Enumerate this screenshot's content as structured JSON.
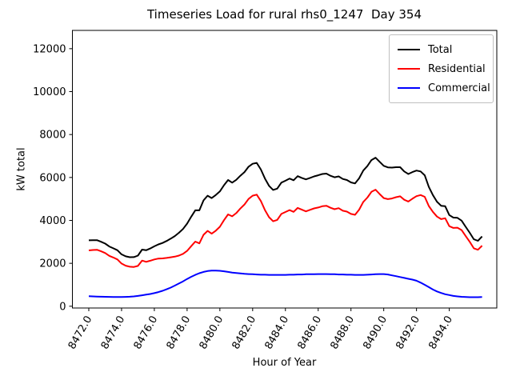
{
  "window": {
    "title": "Timeseries Load for rural rhs0_1247  Day 354"
  },
  "chart_data": {
    "type": "line",
    "title": "Timeseries Load for rural rhs0_1247  Day 354",
    "xlabel": "Hour of Year",
    "ylabel": "kW total",
    "legend_position": "upper right",
    "grid": false,
    "xlim": [
      8471.0,
      8496.9
    ],
    "ylim": [
      -82,
      12852
    ],
    "xticks": {
      "values": [
        8472,
        8474,
        8476,
        8478,
        8480,
        8482,
        8484,
        8486,
        8488,
        8490,
        8492,
        8494
      ],
      "labels": [
        "8472.0",
        "8474.0",
        "8476.0",
        "8478.0",
        "8480.0",
        "8482.0",
        "8484.0",
        "8486.0",
        "8488.0",
        "8490.0",
        "8492.0",
        "8494.0"
      ],
      "rotation_deg": -60
    },
    "yticks": {
      "values": [
        0,
        2000,
        4000,
        6000,
        8000,
        10000,
        12000
      ],
      "labels": [
        "0",
        "2000",
        "4000",
        "6000",
        "8000",
        "10000",
        "12000"
      ]
    },
    "x": [
      8472.0,
      8472.25,
      8472.5,
      8472.75,
      8473.0,
      8473.25,
      8473.5,
      8473.75,
      8474.0,
      8474.25,
      8474.5,
      8474.75,
      8475.0,
      8475.25,
      8475.5,
      8475.75,
      8476.0,
      8476.25,
      8476.5,
      8476.75,
      8477.0,
      8477.25,
      8477.5,
      8477.75,
      8478.0,
      8478.25,
      8478.5,
      8478.75,
      8479.0,
      8479.25,
      8479.5,
      8479.75,
      8480.0,
      8480.25,
      8480.5,
      8480.75,
      8481.0,
      8481.25,
      8481.5,
      8481.75,
      8482.0,
      8482.25,
      8482.5,
      8482.75,
      8483.0,
      8483.25,
      8483.5,
      8483.75,
      8484.0,
      8484.25,
      8484.5,
      8484.75,
      8485.0,
      8485.25,
      8485.5,
      8485.75,
      8486.0,
      8486.25,
      8486.5,
      8486.75,
      8487.0,
      8487.25,
      8487.5,
      8487.75,
      8488.0,
      8488.25,
      8488.5,
      8488.75,
      8489.0,
      8489.25,
      8489.5,
      8489.75,
      8490.0,
      8490.25,
      8490.5,
      8490.75,
      8491.0,
      8491.25,
      8491.5,
      8491.75,
      8492.0,
      8492.25,
      8492.5,
      8492.75,
      8493.0,
      8493.25,
      8493.5,
      8493.75,
      8494.0,
      8494.25,
      8494.5,
      8494.75,
      8495.0,
      8495.25,
      8495.5,
      8495.75,
      8496.0
    ],
    "series": [
      {
        "name": "Total",
        "color": "#000000",
        "values": [
          3070,
          3080,
          3080,
          3005,
          2920,
          2785,
          2700,
          2610,
          2420,
          2325,
          2285,
          2290,
          2360,
          2640,
          2610,
          2690,
          2790,
          2880,
          2950,
          3040,
          3150,
          3270,
          3420,
          3600,
          3850,
          4170,
          4470,
          4470,
          4930,
          5150,
          5040,
          5180,
          5350,
          5640,
          5880,
          5760,
          5890,
          6080,
          6250,
          6500,
          6640,
          6680,
          6370,
          5950,
          5610,
          5420,
          5480,
          5760,
          5850,
          5950,
          5870,
          6060,
          5980,
          5910,
          5980,
          6050,
          6100,
          6160,
          6180,
          6080,
          6010,
          6050,
          5930,
          5880,
          5770,
          5720,
          5960,
          6320,
          6530,
          6810,
          6920,
          6730,
          6540,
          6470,
          6460,
          6480,
          6480,
          6280,
          6160,
          6250,
          6320,
          6280,
          6100,
          5560,
          5180,
          4870,
          4680,
          4660,
          4250,
          4130,
          4120,
          3990,
          3700,
          3420,
          3120,
          3050,
          3250
        ]
      },
      {
        "name": "Residential",
        "color": "#ff0000",
        "values": [
          2600,
          2620,
          2630,
          2560,
          2480,
          2350,
          2270,
          2180,
          1990,
          1890,
          1840,
          1830,
          1880,
          2130,
          2070,
          2120,
          2180,
          2220,
          2230,
          2250,
          2280,
          2310,
          2360,
          2440,
          2580,
          2800,
          3010,
          2930,
          3330,
          3510,
          3380,
          3520,
          3700,
          4010,
          4280,
          4190,
          4340,
          4550,
          4740,
          5000,
          5150,
          5200,
          4900,
          4480,
          4150,
          3960,
          4020,
          4300,
          4390,
          4480,
          4400,
          4580,
          4500,
          4420,
          4490,
          4560,
          4600,
          4660,
          4680,
          4590,
          4520,
          4570,
          4450,
          4410,
          4300,
          4260,
          4500,
          4860,
          5060,
          5330,
          5430,
          5230,
          5040,
          4990,
          5020,
          5080,
          5120,
          4960,
          4880,
          5010,
          5130,
          5180,
          5100,
          4670,
          4400,
          4180,
          4060,
          4100,
          3730,
          3650,
          3660,
          3550,
          3270,
          3000,
          2700,
          2630,
          2820
        ]
      },
      {
        "name": "Commercial",
        "color": "#0000ff",
        "values": [
          470,
          460,
          450,
          445,
          440,
          435,
          430,
          430,
          430,
          435,
          445,
          460,
          480,
          510,
          540,
          570,
          610,
          660,
          720,
          790,
          870,
          960,
          1060,
          1160,
          1270,
          1370,
          1460,
          1540,
          1600,
          1640,
          1660,
          1660,
          1650,
          1630,
          1600,
          1570,
          1550,
          1530,
          1510,
          1500,
          1490,
          1480,
          1470,
          1470,
          1460,
          1460,
          1460,
          1460,
          1460,
          1470,
          1470,
          1480,
          1480,
          1490,
          1490,
          1490,
          1500,
          1500,
          1500,
          1490,
          1490,
          1480,
          1480,
          1470,
          1470,
          1460,
          1460,
          1460,
          1470,
          1480,
          1490,
          1500,
          1500,
          1480,
          1440,
          1400,
          1360,
          1320,
          1280,
          1240,
          1190,
          1100,
          1000,
          890,
          780,
          690,
          620,
          560,
          520,
          480,
          460,
          440,
          430,
          420,
          420,
          420,
          430
        ]
      }
    ]
  }
}
